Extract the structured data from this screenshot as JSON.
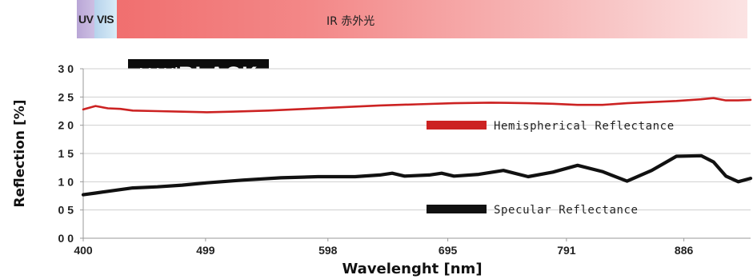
{
  "spectrum_band": {
    "uv": "UV",
    "vis": "VIS",
    "ir": "IR 赤外光"
  },
  "logo": {
    "part1": "MAXi",
    "part2": "BLACK"
  },
  "chart_data": {
    "type": "line",
    "xlabel": "Wavelenght [nm]",
    "ylabel": "Reflection [%]",
    "xlim": [
      400,
      940
    ],
    "ylim": [
      0,
      3.0
    ],
    "x_ticks": [
      "400",
      "499",
      "598",
      "695",
      "791",
      "886"
    ],
    "x_tick_values": [
      400,
      499,
      598,
      695,
      791,
      886
    ],
    "y_ticks": [
      "3 0",
      "2 5",
      "2 0",
      "1 5",
      "1 0",
      "0 5",
      "0 0"
    ],
    "y_tick_values": [
      3.0,
      2.5,
      2.0,
      1.5,
      1.0,
      0.5,
      0.0
    ],
    "grid": "horizontal",
    "series": [
      {
        "name": "Hemispherical Reflectance",
        "color": "#cc2222",
        "x": [
          400,
          410,
          420,
          430,
          440,
          460,
          480,
          500,
          520,
          550,
          580,
          610,
          640,
          670,
          700,
          730,
          760,
          780,
          800,
          820,
          840,
          860,
          880,
          900,
          910,
          920,
          930,
          940
        ],
        "y": [
          2.28,
          2.34,
          2.3,
          2.29,
          2.26,
          2.25,
          2.24,
          2.23,
          2.24,
          2.26,
          2.29,
          2.32,
          2.35,
          2.37,
          2.39,
          2.4,
          2.39,
          2.38,
          2.36,
          2.36,
          2.39,
          2.41,
          2.43,
          2.46,
          2.48,
          2.44,
          2.44,
          2.45
        ]
      },
      {
        "name": "Specular Reflectance",
        "color": "#111111",
        "x": [
          400,
          410,
          420,
          430,
          440,
          460,
          480,
          500,
          530,
          560,
          590,
          620,
          640,
          650,
          660,
          680,
          690,
          700,
          720,
          740,
          760,
          780,
          800,
          820,
          840,
          860,
          880,
          900,
          910,
          920,
          930,
          940
        ],
        "y": [
          0.77,
          0.8,
          0.83,
          0.86,
          0.89,
          0.91,
          0.94,
          0.98,
          1.03,
          1.07,
          1.09,
          1.09,
          1.12,
          1.15,
          1.1,
          1.12,
          1.15,
          1.1,
          1.13,
          1.2,
          1.09,
          1.17,
          1.29,
          1.18,
          1.01,
          1.2,
          1.45,
          1.46,
          1.35,
          1.1,
          1.0,
          1.06
        ]
      }
    ]
  }
}
